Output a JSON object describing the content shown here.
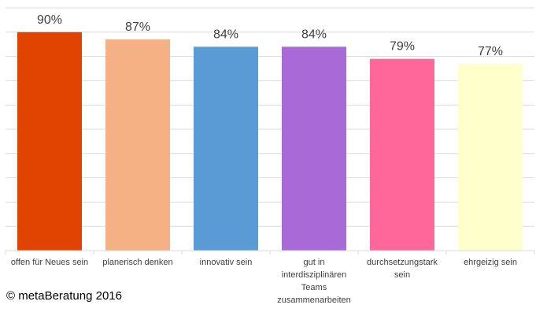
{
  "chart_data": {
    "type": "bar",
    "categories": [
      [
        "offen für Neues sein"
      ],
      [
        "planerisch denken"
      ],
      [
        "innovativ sein"
      ],
      [
        "gut in",
        "interdisziplinären",
        "Teams",
        "zusammenarbeiten"
      ],
      [
        "durchsetzungstark",
        "sein"
      ],
      [
        "ehrgeizig sein"
      ]
    ],
    "values": [
      90,
      87,
      84,
      84,
      79,
      77
    ],
    "value_labels": [
      "90%",
      "87%",
      "84%",
      "84%",
      "79%",
      "77%"
    ],
    "colors": [
      "#e04400",
      "#f5b083",
      "#5b9bd5",
      "#a86ad6",
      "#ff6699",
      "#ffffcc"
    ],
    "ylim": [
      0,
      100
    ],
    "grid": true,
    "legend": "none"
  },
  "footer": {
    "copyright": "© metaBeratung 2016"
  }
}
